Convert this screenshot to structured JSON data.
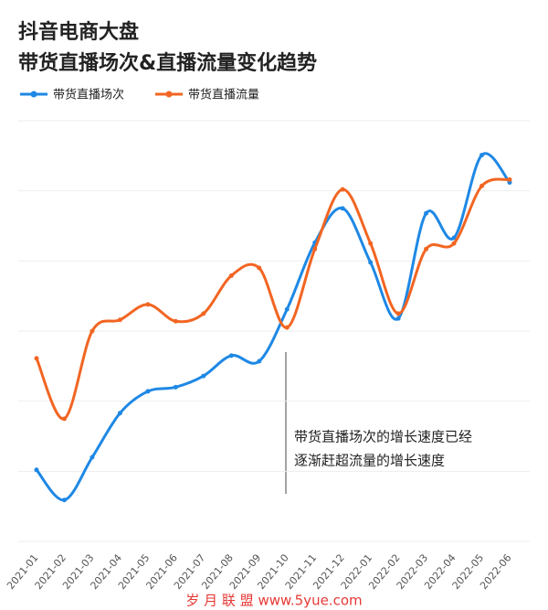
{
  "chart_data": {
    "type": "line",
    "title": "抖音电商大盘",
    "subtitle": "带货直播场次&直播流量变化趋势",
    "categories": [
      "2021-01",
      "2021-02",
      "2021-03",
      "2021-04",
      "2021-05",
      "2021-06",
      "2021-07",
      "2021-08",
      "2021-09",
      "2021-10",
      "2021-11",
      "2021-12",
      "2022-01",
      "2022-02",
      "2022-03",
      "2022-04",
      "2022-05",
      "2022-06"
    ],
    "series": [
      {
        "name": "带货直播场次",
        "color": "#1e88e5",
        "values": [
          1.02,
          0.59,
          1.2,
          1.83,
          2.14,
          2.2,
          2.36,
          2.65,
          2.57,
          3.31,
          4.26,
          4.75,
          3.98,
          3.18,
          4.68,
          4.33,
          5.51,
          5.12
        ]
      },
      {
        "name": "带货直播流量",
        "color": "#f26522",
        "values": [
          2.61,
          1.75,
          3.0,
          3.16,
          3.38,
          3.14,
          3.25,
          3.79,
          3.9,
          3.05,
          4.17,
          5.02,
          4.25,
          3.25,
          4.17,
          4.25,
          5.07,
          5.16
        ]
      }
    ],
    "ylim": [
      0,
      6
    ],
    "grid": true,
    "annotation": [
      "带货直播场次的增长速度已经",
      "逐渐赶超流量的增长速度"
    ],
    "footer": "岁 月 联 盟  www.5yue.com"
  }
}
